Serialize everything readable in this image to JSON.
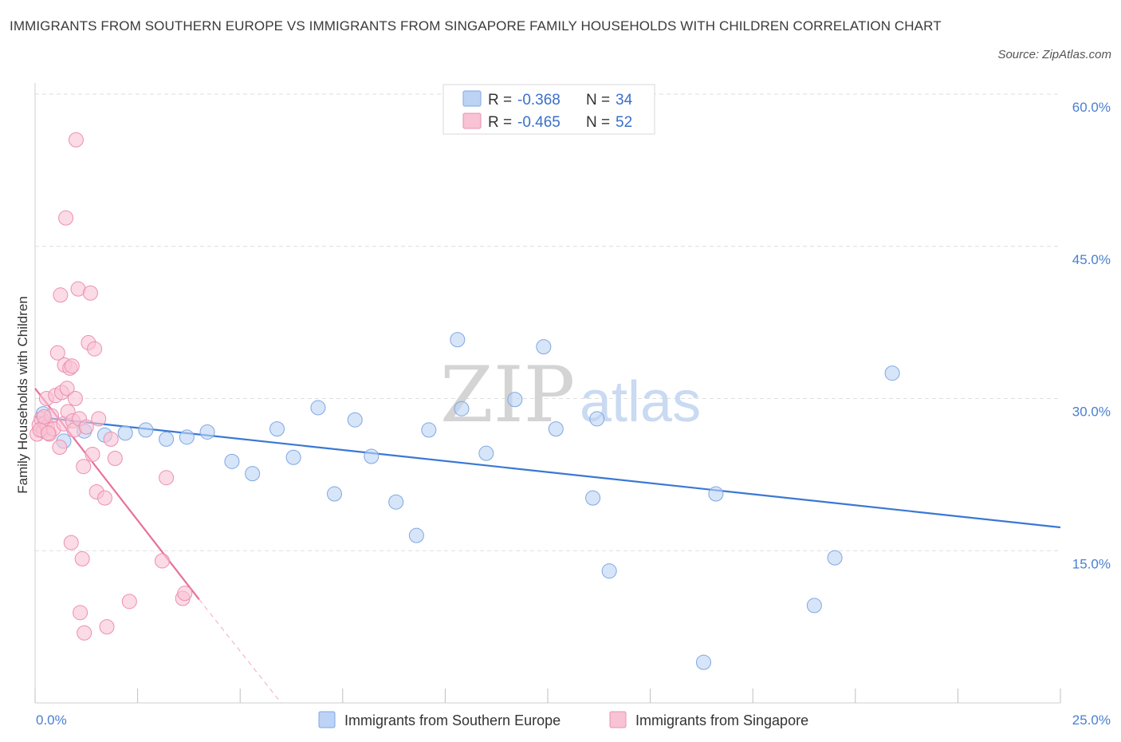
{
  "title": "IMMIGRANTS FROM SOUTHERN EUROPE VS IMMIGRANTS FROM SINGAPORE FAMILY HOUSEHOLDS WITH CHILDREN CORRELATION CHART",
  "source": "Source: ZipAtlas.com",
  "colors": {
    "blue_fill": "#bcd3f5",
    "blue_stroke": "#7ea7e3",
    "blue_line": "#3a78d4",
    "pink_fill": "#f8c3d4",
    "pink_stroke": "#ec8fb0",
    "pink_line": "#e8709a",
    "grid": "#dedede",
    "axis_text": "#4a7fd0"
  },
  "legend": {
    "rows": [
      {
        "r_label": "R =",
        "r_value": "-0.368",
        "n_label": "N =",
        "n_value": "34"
      },
      {
        "r_label": "R =",
        "r_value": "-0.465",
        "n_label": "N =",
        "n_value": "52"
      }
    ]
  },
  "watermark": {
    "zip": "ZIP",
    "atlas": "atlas"
  },
  "chart_data": {
    "type": "scatter",
    "xlabel": "",
    "ylabel": "Family Households with Children",
    "xlim": [
      0,
      25
    ],
    "ylim": [
      0,
      60
    ],
    "x_tick_labels": [
      "0.0%",
      "25.0%"
    ],
    "y_ticks": [
      15,
      30,
      45,
      60
    ],
    "y_tick_labels": [
      "15.0%",
      "30.0%",
      "45.0%",
      "60.0%"
    ],
    "grid": true,
    "series": [
      {
        "name": "Immigrants from Southern Europe",
        "color": "blue",
        "points": [
          [
            0.2,
            28.5
          ],
          [
            0.7,
            25.8
          ],
          [
            1.2,
            26.8
          ],
          [
            1.7,
            26.4
          ],
          [
            2.2,
            26.6
          ],
          [
            2.7,
            26.9
          ],
          [
            3.2,
            26.0
          ],
          [
            3.7,
            26.2
          ],
          [
            4.2,
            26.7
          ],
          [
            4.8,
            23.8
          ],
          [
            5.3,
            22.6
          ],
          [
            5.9,
            27.0
          ],
          [
            6.3,
            24.2
          ],
          [
            6.9,
            29.1
          ],
          [
            7.3,
            20.6
          ],
          [
            7.8,
            27.9
          ],
          [
            8.2,
            24.3
          ],
          [
            8.8,
            19.8
          ],
          [
            9.3,
            16.5
          ],
          [
            9.6,
            26.9
          ],
          [
            10.3,
            35.8
          ],
          [
            10.4,
            29.0
          ],
          [
            11.0,
            24.6
          ],
          [
            11.7,
            29.9
          ],
          [
            12.4,
            35.1
          ],
          [
            12.7,
            27.0
          ],
          [
            13.6,
            20.2
          ],
          [
            13.7,
            28.0
          ],
          [
            14.0,
            13.0
          ],
          [
            16.3,
            4.0
          ],
          [
            16.6,
            20.6
          ],
          [
            19.0,
            9.6
          ],
          [
            19.5,
            14.3
          ],
          [
            20.9,
            32.5
          ]
        ],
        "trend": {
          "x1": 0,
          "y1": 28.2,
          "x2": 25,
          "y2": 17.3
        }
      },
      {
        "name": "Immigrants from Singapore",
        "color": "pink",
        "points": [
          [
            0.05,
            26.5
          ],
          [
            0.1,
            27.4
          ],
          [
            0.15,
            28.0
          ],
          [
            0.2,
            26.8
          ],
          [
            0.25,
            27.6
          ],
          [
            0.28,
            30.0
          ],
          [
            0.3,
            27.2
          ],
          [
            0.35,
            26.5
          ],
          [
            0.4,
            28.3
          ],
          [
            0.45,
            27.0
          ],
          [
            0.5,
            30.3
          ],
          [
            0.55,
            34.5
          ],
          [
            0.6,
            25.2
          ],
          [
            0.62,
            40.2
          ],
          [
            0.65,
            30.6
          ],
          [
            0.7,
            27.5
          ],
          [
            0.72,
            33.3
          ],
          [
            0.75,
            47.8
          ],
          [
            0.78,
            31.0
          ],
          [
            0.8,
            28.7
          ],
          [
            0.85,
            33.0
          ],
          [
            0.88,
            15.8
          ],
          [
            0.9,
            33.2
          ],
          [
            0.92,
            27.8
          ],
          [
            0.95,
            26.9
          ],
          [
            0.98,
            30.0
          ],
          [
            1.0,
            55.5
          ],
          [
            1.05,
            40.8
          ],
          [
            1.08,
            28.0
          ],
          [
            1.1,
            8.9
          ],
          [
            1.15,
            14.2
          ],
          [
            1.18,
            23.3
          ],
          [
            1.2,
            6.9
          ],
          [
            1.25,
            27.2
          ],
          [
            1.3,
            35.5
          ],
          [
            1.35,
            40.4
          ],
          [
            1.4,
            24.5
          ],
          [
            1.45,
            34.9
          ],
          [
            1.5,
            20.8
          ],
          [
            1.55,
            28.0
          ],
          [
            1.7,
            20.2
          ],
          [
            1.75,
            7.5
          ],
          [
            1.85,
            26.0
          ],
          [
            1.95,
            24.1
          ],
          [
            2.3,
            10.0
          ],
          [
            3.1,
            14.0
          ],
          [
            3.2,
            22.2
          ],
          [
            3.6,
            10.3
          ],
          [
            3.65,
            10.8
          ],
          [
            0.12,
            26.9
          ],
          [
            0.22,
            28.2
          ],
          [
            0.32,
            26.6
          ]
        ],
        "trend": {
          "x1": 0,
          "y1": 31.0,
          "x2": 4.0,
          "y2": 10.2
        },
        "trend_dashed": {
          "x1": 4.0,
          "y1": 10.2,
          "x2": 6.0,
          "y2": 0.0
        }
      }
    ]
  },
  "bottom_legend": [
    {
      "label": "Immigrants from Southern Europe",
      "color": "blue"
    },
    {
      "label": "Immigrants from Singapore",
      "color": "pink"
    }
  ]
}
